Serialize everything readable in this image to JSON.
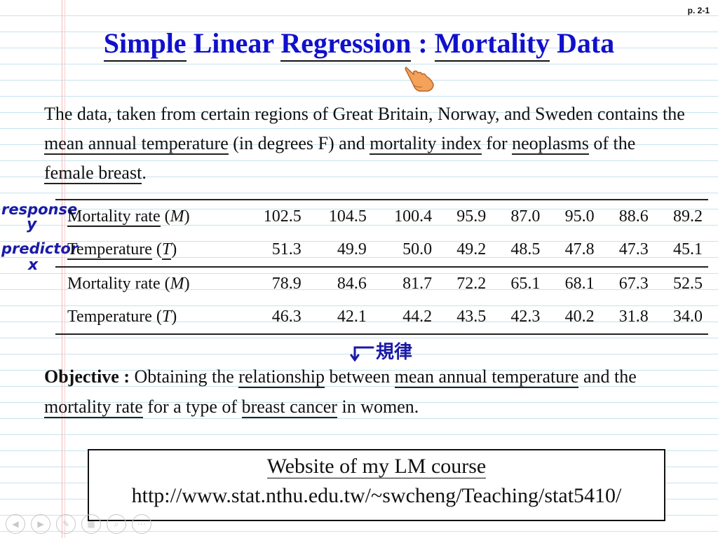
{
  "page_number": "p. 2-1",
  "title": {
    "part1": "Simple",
    "part2": " Linear ",
    "part3": "Regression",
    "part4": " : ",
    "part5": "Mortality",
    "part6": " Data"
  },
  "intro": {
    "t1": "The data, taken from certain regions of Great Britain, Norway, and Sweden contains the ",
    "u1": "mean annual temperature",
    "t2": " (in degrees F) and ",
    "u2": "mortality index",
    "t3": " for ",
    "u3": "neoplasms",
    "t4": " of the ",
    "u4": "female breast",
    "t5": "."
  },
  "table": {
    "label_mortality": "Mortality rate",
    "var_m": "M",
    "label_temperature": "Temperature",
    "var_t": "T",
    "mortality_row1": [
      "102.5",
      "104.5",
      "100.4",
      "95.9",
      "87.0",
      "95.0",
      "88.6",
      "89.2"
    ],
    "temperature_row1": [
      "51.3",
      "49.9",
      "50.0",
      "49.2",
      "48.5",
      "47.8",
      "47.3",
      "45.1"
    ],
    "mortality_row2": [
      "78.9",
      "84.6",
      "81.7",
      "72.2",
      "65.1",
      "68.1",
      "67.3",
      "52.5"
    ],
    "temperature_row2": [
      "46.3",
      "42.1",
      "44.2",
      "43.5",
      "42.3",
      "40.2",
      "31.8",
      "34.0"
    ]
  },
  "annotations": {
    "response": "response",
    "y": "y",
    "predictor": "predictor",
    "x": "x",
    "rule": "規律"
  },
  "objective": {
    "label": "Objective :",
    "t1": " Obtaining the ",
    "u1": "relationship",
    "t2": " between ",
    "u2": "mean annual temperature",
    "t3": " and the ",
    "u3": "mortality rate",
    "t4": " for a type of ",
    "u4": "breast cancer",
    "t5": " in women."
  },
  "website": {
    "label": "Website of my LM course",
    "url": "http://www.stat.nthu.edu.tw/~swcheng/Teaching/stat5410/"
  },
  "colors": {
    "title": "#1010cc",
    "ink": "#1a1aa8",
    "ruled_line": "#c7e3ee",
    "margin_line": "#f2b8b8"
  }
}
